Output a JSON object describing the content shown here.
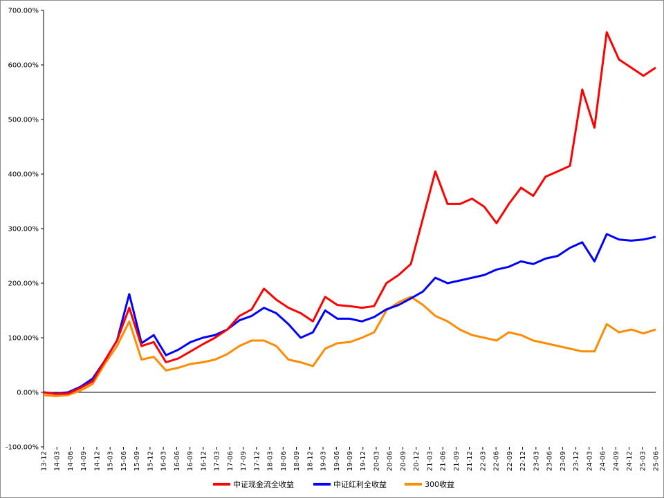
{
  "chart_data": {
    "type": "line",
    "title": "",
    "xlabel": "",
    "ylabel": "",
    "ylim": [
      -100,
      700
    ],
    "y_ticks": [
      "-100.00%",
      "0.00%",
      "100.00%",
      "200.00%",
      "300.00%",
      "400.00%",
      "500.00%",
      "600.00%",
      "700.00%"
    ],
    "y_tick_values": [
      -100,
      0,
      100,
      200,
      300,
      400,
      500,
      600,
      700
    ],
    "x_ticks": [
      "13-12",
      "14-03",
      "14-06",
      "14-09",
      "14-12",
      "15-03",
      "15-06",
      "15-09",
      "15-12",
      "16-03",
      "16-06",
      "16-09",
      "16-12",
      "17-03",
      "17-06",
      "17-09",
      "17-12",
      "18-03",
      "18-06",
      "18-09",
      "18-12",
      "19-03",
      "19-06",
      "19-09",
      "19-12",
      "20-03",
      "20-06",
      "20-09",
      "20-12",
      "21-03",
      "21-06",
      "21-09",
      "21-12",
      "22-03",
      "22-06",
      "22-09",
      "22-12",
      "23-03",
      "23-06",
      "23-09",
      "23-12",
      "24-03",
      "24-06",
      "24-09",
      "24-12",
      "25-03",
      "25-06"
    ],
    "grid": false,
    "legend_position": "bottom",
    "series": [
      {
        "name": "中证现金流全收益",
        "color": "#ff0000",
        "values": [
          0,
          -3,
          -2,
          8,
          20,
          58,
          95,
          155,
          85,
          92,
          55,
          62,
          75,
          88,
          100,
          115,
          140,
          152,
          190,
          170,
          155,
          145,
          130,
          175,
          160,
          158,
          155,
          158,
          200,
          215,
          235,
          320,
          405,
          345,
          345,
          355,
          340,
          310,
          345,
          375,
          360,
          395,
          405,
          415,
          555,
          485,
          660,
          610,
          595,
          580,
          595
        ]
      },
      {
        "name": "中证红利全收益",
        "color": "#0000ff",
        "values": [
          0,
          -2,
          0,
          10,
          25,
          58,
          95,
          180,
          90,
          105,
          68,
          78,
          92,
          100,
          105,
          115,
          132,
          140,
          155,
          145,
          125,
          100,
          110,
          150,
          135,
          135,
          130,
          138,
          152,
          160,
          172,
          185,
          210,
          200,
          205,
          210,
          215,
          225,
          230,
          240,
          235,
          245,
          250,
          265,
          275,
          240,
          290,
          280,
          278,
          280,
          285
        ]
      },
      {
        "name": "300收益",
        "color": "#ff8c00",
        "values": [
          -5,
          -7,
          -5,
          3,
          15,
          52,
          85,
          130,
          60,
          65,
          40,
          45,
          52,
          55,
          60,
          70,
          85,
          95,
          95,
          85,
          60,
          55,
          48,
          80,
          90,
          92,
          100,
          110,
          150,
          165,
          175,
          160,
          140,
          130,
          115,
          105,
          100,
          95,
          110,
          105,
          95,
          90,
          85,
          80,
          75,
          75,
          125,
          110,
          115,
          108,
          115
        ]
      }
    ]
  },
  "legend": {
    "items": [
      {
        "label": "中证现金流全收益",
        "color": "#ff0000"
      },
      {
        "label": "中证红利全收益",
        "color": "#0000ff"
      },
      {
        "label": "300收益",
        "color": "#ff8c00"
      }
    ]
  }
}
